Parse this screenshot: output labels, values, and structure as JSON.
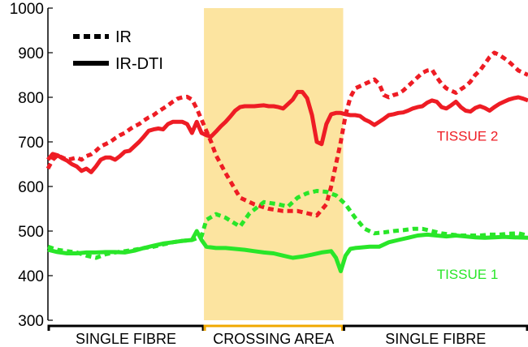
{
  "chart_data": {
    "type": "line",
    "ylim": [
      300,
      1000
    ],
    "yticks": [
      300,
      400,
      500,
      600,
      700,
      800,
      900,
      1000
    ],
    "xlim": [
      0,
      100
    ],
    "highlight_region": {
      "x": [
        32.5,
        61.5
      ],
      "color": "#fce4a0"
    },
    "series": [
      {
        "name": "TISSUE 2",
        "method": "IR",
        "color": "#ee1c24",
        "dash": true,
        "x": [
          0,
          1,
          2,
          3,
          4,
          5,
          6,
          7,
          8,
          9,
          10,
          11,
          12,
          13,
          14,
          15,
          16,
          17,
          18,
          19,
          20,
          21,
          22,
          23,
          24,
          25,
          26,
          27,
          28,
          29,
          30,
          31,
          32,
          33,
          34,
          35,
          37,
          40,
          43,
          46,
          49,
          52,
          54,
          56,
          58,
          59,
          60,
          61,
          62,
          63,
          64,
          65,
          66,
          67,
          68,
          69,
          70,
          71,
          72,
          73,
          74,
          75,
          76,
          77,
          78,
          79,
          80,
          81,
          82,
          83,
          84,
          85,
          86,
          87,
          88,
          89,
          90,
          91,
          92,
          93,
          94,
          95,
          96,
          97,
          98,
          99,
          100
        ],
        "y": [
          640,
          660,
          670,
          665,
          660,
          662,
          665,
          660,
          668,
          672,
          680,
          690,
          695,
          700,
          708,
          715,
          720,
          728,
          735,
          740,
          748,
          755,
          760,
          768,
          775,
          782,
          790,
          797,
          800,
          801,
          795,
          775,
          750,
          725,
          700,
          670,
          630,
          575,
          560,
          550,
          545,
          545,
          540,
          535,
          560,
          600,
          650,
          700,
          760,
          800,
          820,
          825,
          830,
          835,
          840,
          830,
          805,
          800,
          805,
          808,
          815,
          825,
          835,
          845,
          855,
          860,
          862,
          845,
          830,
          820,
          815,
          810,
          818,
          825,
          835,
          850,
          860,
          875,
          890,
          900,
          895,
          888,
          880,
          870,
          860,
          855,
          850
        ]
      },
      {
        "name": "TISSUE 2",
        "method": "IR-DTI",
        "color": "#ee1c24",
        "dash": false,
        "x": [
          0,
          1,
          2,
          3,
          4,
          5,
          6,
          7,
          8,
          9,
          10,
          11,
          12,
          13,
          14,
          15,
          16,
          17,
          18,
          19,
          20,
          21,
          22,
          23,
          24,
          25,
          26,
          27,
          28,
          29,
          30,
          31,
          32,
          33,
          34,
          35,
          36,
          37,
          38,
          39,
          40,
          41,
          42,
          43,
          44,
          45,
          46,
          47,
          48,
          49,
          50,
          51,
          52,
          53,
          54,
          55,
          56,
          57,
          58,
          59,
          60,
          61,
          62,
          63,
          64,
          65,
          66,
          67,
          68,
          69,
          70,
          71,
          72,
          73,
          74,
          75,
          76,
          77,
          78,
          79,
          80,
          81,
          82,
          83,
          84,
          85,
          86,
          87,
          88,
          89,
          90,
          91,
          92,
          93,
          94,
          95,
          96,
          97,
          98,
          99,
          100
        ],
        "y": [
          660,
          673,
          670,
          663,
          658,
          650,
          645,
          635,
          640,
          632,
          645,
          660,
          665,
          665,
          660,
          668,
          678,
          680,
          690,
          700,
          712,
          725,
          728,
          730,
          728,
          740,
          745,
          745,
          745,
          740,
          720,
          745,
          720,
          715,
          712,
          723,
          735,
          745,
          757,
          770,
          778,
          780,
          780,
          780,
          781,
          782,
          780,
          780,
          778,
          775,
          785,
          795,
          812,
          812,
          798,
          760,
          700,
          695,
          740,
          762,
          765,
          765,
          762,
          760,
          760,
          758,
          750,
          745,
          738,
          745,
          752,
          760,
          762,
          765,
          766,
          770,
          775,
          778,
          780,
          788,
          793,
          790,
          778,
          775,
          782,
          790,
          778,
          770,
          768,
          776,
          780,
          776,
          770,
          778,
          785,
          790,
          795,
          798,
          800,
          797,
          793
        ]
      },
      {
        "name": "TISSUE 1",
        "method": "IR",
        "color": "#29e629",
        "dash": true,
        "x": [
          0,
          2,
          4,
          6,
          8,
          10,
          12,
          14,
          16,
          18,
          20,
          22,
          24,
          26,
          28,
          30,
          32,
          33,
          35,
          37,
          40,
          42,
          45,
          48,
          50,
          52,
          54,
          56,
          58,
          60,
          62,
          64,
          66,
          68,
          70,
          72,
          74,
          76,
          78,
          80,
          82,
          84,
          86,
          88,
          90,
          92,
          94,
          96,
          98,
          100
        ],
        "y": [
          465,
          458,
          455,
          452,
          445,
          440,
          448,
          452,
          455,
          458,
          462,
          465,
          470,
          475,
          478,
          480,
          488,
          525,
          538,
          530,
          510,
          540,
          565,
          560,
          555,
          575,
          585,
          590,
          588,
          580,
          560,
          530,
          505,
          495,
          497,
          500,
          502,
          505,
          505,
          500,
          495,
          492,
          490,
          490,
          490,
          492,
          492,
          494,
          495,
          490
        ]
      },
      {
        "name": "TISSUE 1",
        "method": "IR-DTI",
        "color": "#29e629",
        "dash": false,
        "x": [
          0,
          2,
          4,
          6,
          8,
          10,
          12,
          14,
          16,
          18,
          20,
          22,
          24,
          26,
          28,
          30,
          31,
          32,
          33,
          35,
          37,
          39,
          41,
          43,
          45,
          47,
          49,
          51,
          53,
          55,
          57,
          59,
          60,
          61,
          62,
          63,
          64,
          65,
          67,
          69,
          71,
          73,
          75,
          77,
          79,
          81,
          83,
          85,
          87,
          89,
          91,
          93,
          95,
          97,
          100
        ],
        "y": [
          458,
          453,
          450,
          450,
          452,
          452,
          453,
          453,
          452,
          456,
          462,
          467,
          472,
          475,
          478,
          480,
          500,
          480,
          465,
          462,
          462,
          460,
          458,
          455,
          452,
          450,
          445,
          440,
          443,
          447,
          452,
          455,
          440,
          410,
          445,
          460,
          462,
          463,
          465,
          465,
          475,
          480,
          485,
          490,
          492,
          490,
          488,
          490,
          488,
          486,
          485,
          486,
          487,
          486,
          485
        ]
      }
    ],
    "legend": {
      "placement": "top-left",
      "entries": [
        {
          "label": "IR",
          "dash": true
        },
        {
          "label": "IR-DTI",
          "dash": false
        }
      ]
    },
    "series_labels": [
      {
        "text": "TISSUE 2",
        "color": "#ee1c24",
        "at_x": 81,
        "at_y": 703
      },
      {
        "text": "TISSUE 1",
        "color": "#29e629",
        "at_x": 81,
        "at_y": 393
      }
    ],
    "regions": [
      {
        "label": "SINGLE FIBRE",
        "x": [
          0,
          32.5
        ],
        "color": "#000000"
      },
      {
        "label": "CROSSING AREA",
        "x": [
          32.5,
          61.5
        ],
        "color": "#f0a800"
      },
      {
        "label": "SINGLE FIBRE",
        "x": [
          61.5,
          100
        ],
        "color": "#000000"
      }
    ]
  }
}
